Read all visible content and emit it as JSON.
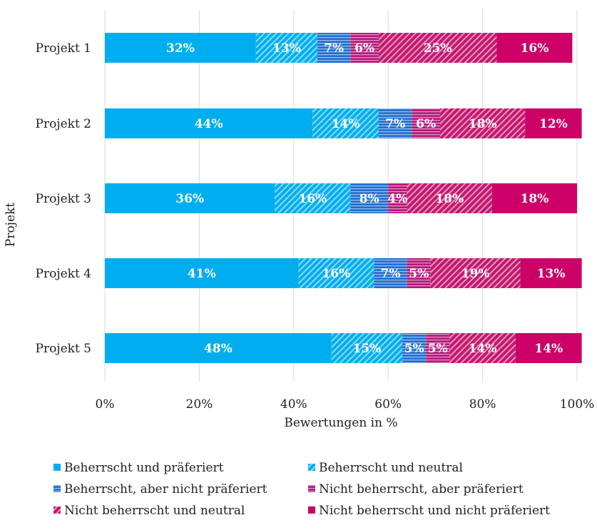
{
  "chart_data": {
    "type": "bar",
    "orientation": "horizontal",
    "stacked": "percent",
    "xlabel": "Bewertungen in %",
    "ylabel": "Projekt",
    "xlim": [
      0,
      100
    ],
    "x_ticks": [
      "0%",
      "20%",
      "40%",
      "60%",
      "80%",
      "100%"
    ],
    "grid": "vertical",
    "legend_position": "bottom",
    "categories": [
      "Projekt 1",
      "Projekt 2",
      "Projekt 3",
      "Projekt 4",
      "Projekt 5"
    ],
    "series": [
      {
        "name": "Beherrscht und präferiert",
        "color": "#00AEEF",
        "pattern": "solid",
        "values": [
          32,
          44,
          36,
          41,
          48
        ],
        "labels": [
          "32%",
          "44%",
          "36%",
          "41%",
          "48%"
        ]
      },
      {
        "name": "Beherrscht und neutral",
        "color": "#00AEEF",
        "pattern": "diagonal",
        "values": [
          13,
          14,
          16,
          16,
          15
        ],
        "labels": [
          "13%",
          "14%",
          "16%",
          "16%",
          "15%"
        ]
      },
      {
        "name": "Beherrscht, aber nicht präferiert",
        "color": "#1F6FD1",
        "pattern": "horizontal",
        "values": [
          7,
          7,
          8,
          7,
          5
        ],
        "labels": [
          "7%",
          "7%",
          "8%",
          "7%",
          "5%"
        ]
      },
      {
        "name": "Nicht beherrscht, aber präferiert",
        "color": "#B5187A",
        "pattern": "horizontal",
        "values": [
          6,
          6,
          4,
          5,
          5
        ],
        "labels": [
          "6%",
          "6%",
          "4%",
          "5%",
          "5%"
        ]
      },
      {
        "name": "Nicht beherrscht und neutral",
        "color": "#C4186F",
        "pattern": "diagonal",
        "values": [
          25,
          18,
          18,
          19,
          14
        ],
        "labels": [
          "25%",
          "18%",
          "18%",
          "19%",
          "14%"
        ]
      },
      {
        "name": "Nicht beherrscht und nicht präferiert",
        "color": "#CC0066",
        "pattern": "solid",
        "values": [
          16,
          12,
          18,
          13,
          14
        ],
        "labels": [
          "16%",
          "12%",
          "18%",
          "13%",
          "14%"
        ]
      }
    ]
  }
}
